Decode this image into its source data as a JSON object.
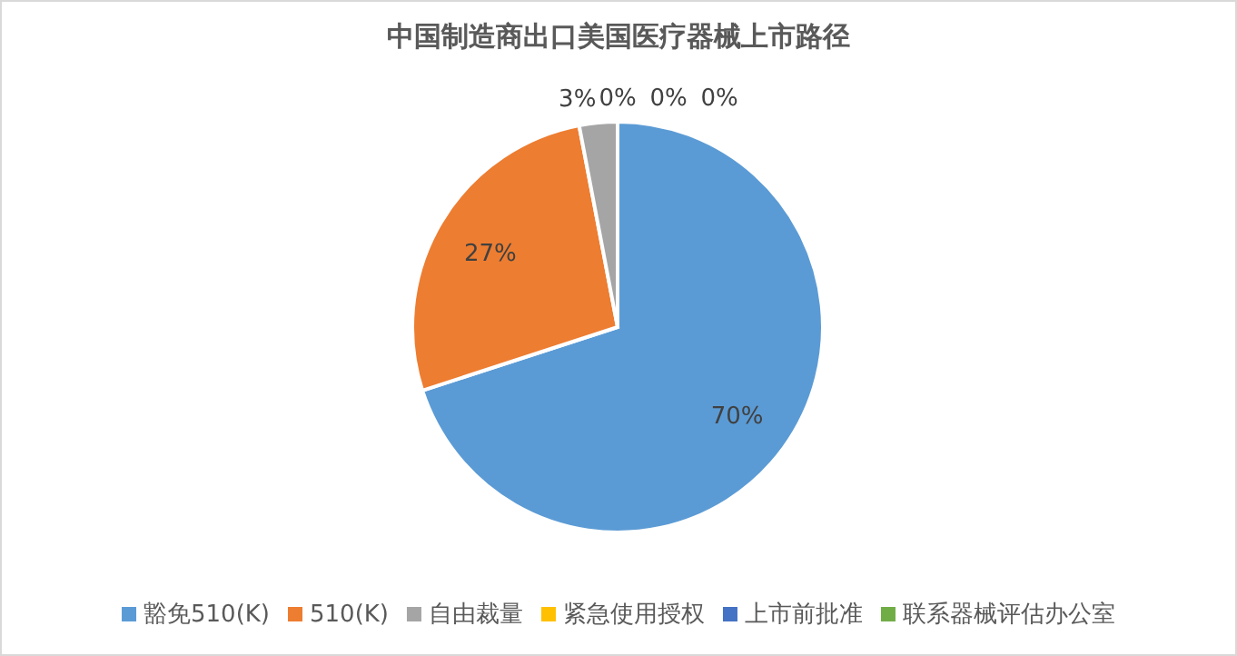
{
  "chart_data": {
    "type": "pie",
    "title": "中国制造商出口美国医疗器械上市路径",
    "categories": [
      "豁免510(K)",
      "510(K)",
      "自由裁量",
      "紧急使用授权",
      "上市前批准",
      "联系器械评估办公室"
    ],
    "values": [
      70,
      27,
      3,
      0,
      0,
      0
    ],
    "value_labels": [
      "70%",
      "27%",
      "3%",
      "0%",
      "0%",
      "0%"
    ],
    "colors": [
      "#5b9bd5",
      "#ed7d31",
      "#a5a5a5",
      "#ffc000",
      "#4472c4",
      "#70ad47"
    ],
    "legend": "bottom"
  }
}
